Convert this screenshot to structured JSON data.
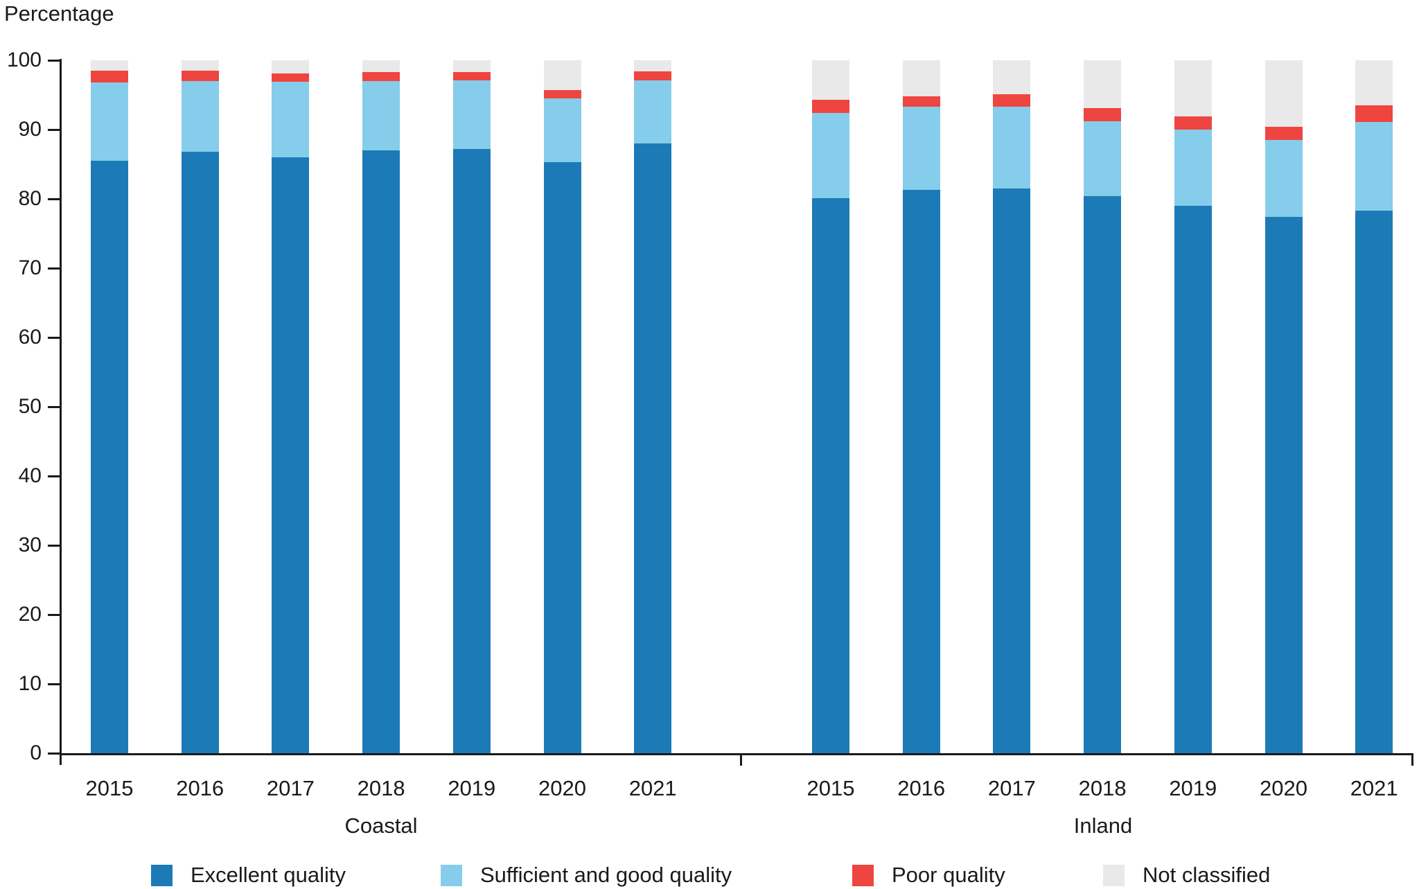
{
  "chart_data": {
    "type": "bar",
    "stacked": true,
    "title": "",
    "ylabel": "Percentage",
    "xlabel": "",
    "ylim": [
      0,
      100
    ],
    "yticks": [
      0,
      10,
      20,
      30,
      40,
      50,
      60,
      70,
      80,
      90,
      100
    ],
    "grid": false,
    "legend_position": "bottom",
    "categories": [
      "2015",
      "2016",
      "2017",
      "2018",
      "2019",
      "2020",
      "2021"
    ],
    "groups": [
      {
        "label": "Coastal",
        "series": [
          {
            "name": "Excellent quality",
            "color": "#1c7bb7",
            "values": [
              85.5,
              86.8,
              86.0,
              87.0,
              87.2,
              85.3,
              88.0
            ]
          },
          {
            "name": "Sufficient and good quality",
            "color": "#86cdeb",
            "values": [
              11.3,
              10.2,
              10.9,
              10.0,
              9.9,
              9.2,
              9.1
            ]
          },
          {
            "name": "Poor quality",
            "color": "#ef4540",
            "values": [
              1.7,
              1.5,
              1.2,
              1.3,
              1.2,
              1.2,
              1.3
            ]
          },
          {
            "name": "Not classified",
            "color": "#e9e9e9",
            "values": [
              1.5,
              1.5,
              1.9,
              1.7,
              1.7,
              4.3,
              1.6
            ]
          }
        ]
      },
      {
        "label": "Inland",
        "series": [
          {
            "name": "Excellent quality",
            "color": "#1c7bb7",
            "values": [
              80.1,
              81.3,
              81.5,
              80.4,
              79.0,
              77.4,
              78.3
            ]
          },
          {
            "name": "Sufficient and good quality",
            "color": "#86cdeb",
            "values": [
              12.3,
              12.0,
              11.8,
              10.8,
              11.0,
              11.1,
              12.8
            ]
          },
          {
            "name": "Poor quality",
            "color": "#ef4540",
            "values": [
              1.9,
              1.5,
              1.8,
              1.9,
              1.9,
              1.9,
              2.4
            ]
          },
          {
            "name": "Not classified",
            "color": "#e9e9e9",
            "values": [
              5.7,
              5.2,
              4.9,
              6.9,
              8.1,
              9.6,
              6.5
            ]
          }
        ]
      }
    ],
    "legend": [
      {
        "label": "Excellent quality",
        "color": "#1c7bb7"
      },
      {
        "label": "Sufficient and good quality",
        "color": "#86cdeb"
      },
      {
        "label": "Poor quality",
        "color": "#ef4540"
      },
      {
        "label": "Not classified",
        "color": "#e9e9e9"
      }
    ]
  }
}
